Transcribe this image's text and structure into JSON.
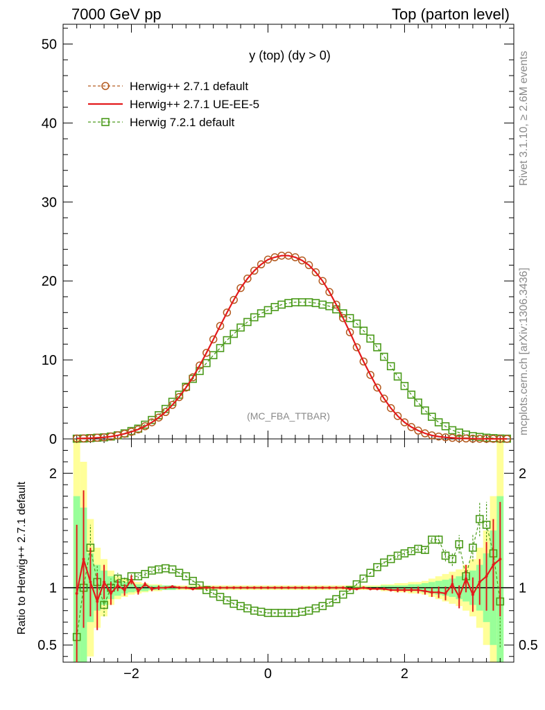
{
  "header": {
    "left": "7000 GeV pp",
    "right": "Top (parton level)"
  },
  "side_labels": {
    "rivet": "Rivet 3.1.10, ≥ 2.6M events",
    "site": "mcplots.cern.ch [arXiv:1306.3436]"
  },
  "colors": {
    "herwig_default": "#b35a1f",
    "herwig_ue": "#e31a1c",
    "herwig7": "#4a9a1a",
    "band_yellow": "#ffff99",
    "band_green": "#99ff99"
  },
  "chart_data": [
    {
      "type": "line",
      "title": "y (top) (dy > 0)",
      "watermark": "(MC_FBA_TTBAR)",
      "xlim": [
        -3.0,
        3.6
      ],
      "ylim": [
        0,
        52.5
      ],
      "yticks": [
        0,
        10,
        20,
        30,
        40,
        50
      ],
      "legend_position": "top-left",
      "series": [
        {
          "name": "Herwig++ 2.7.1 default",
          "style": "dashed-circle",
          "color": "#b35a1f",
          "x": [
            -2.8,
            -2.7,
            -2.6,
            -2.5,
            -2.4,
            -2.3,
            -2.2,
            -2.1,
            -2.0,
            -1.9,
            -1.8,
            -1.7,
            -1.6,
            -1.5,
            -1.4,
            -1.3,
            -1.2,
            -1.1,
            -1.0,
            -0.9,
            -0.8,
            -0.7,
            -0.6,
            -0.5,
            -0.4,
            -0.3,
            -0.2,
            -0.1,
            0.0,
            0.1,
            0.2,
            0.3,
            0.4,
            0.5,
            0.6,
            0.7,
            0.8,
            0.9,
            1.0,
            1.1,
            1.2,
            1.3,
            1.4,
            1.5,
            1.6,
            1.7,
            1.8,
            1.9,
            2.0,
            2.1,
            2.2,
            2.3,
            2.4,
            2.5,
            2.6,
            2.7,
            2.8,
            2.9,
            3.0,
            3.1,
            3.2,
            3.3,
            3.4,
            3.5
          ],
          "y": [
            0.05,
            0.07,
            0.1,
            0.15,
            0.2,
            0.3,
            0.45,
            0.65,
            0.9,
            1.2,
            1.6,
            2.1,
            2.7,
            3.4,
            4.3,
            5.3,
            6.5,
            7.8,
            9.3,
            10.9,
            12.6,
            14.3,
            16.0,
            17.6,
            19.1,
            20.3,
            21.3,
            22.1,
            22.7,
            23.0,
            23.2,
            23.2,
            23.0,
            22.6,
            22.0,
            21.1,
            20.0,
            18.6,
            17.0,
            15.3,
            13.5,
            11.6,
            9.8,
            8.1,
            6.5,
            5.1,
            3.9,
            2.9,
            2.1,
            1.5,
            1.05,
            0.7,
            0.45,
            0.3,
            0.2,
            0.13,
            0.08,
            0.05,
            0.03,
            0.02,
            0.01,
            0.01,
            0.005,
            0.003
          ]
        },
        {
          "name": "Herwig++ 2.7.1 UE-EE-5",
          "style": "solid",
          "color": "#e31a1c",
          "x": [
            -2.8,
            -2.7,
            -2.6,
            -2.5,
            -2.4,
            -2.3,
            -2.2,
            -2.1,
            -2.0,
            -1.9,
            -1.8,
            -1.7,
            -1.6,
            -1.5,
            -1.4,
            -1.3,
            -1.2,
            -1.1,
            -1.0,
            -0.9,
            -0.8,
            -0.7,
            -0.6,
            -0.5,
            -0.4,
            -0.3,
            -0.2,
            -0.1,
            0.0,
            0.1,
            0.2,
            0.3,
            0.4,
            0.5,
            0.6,
            0.7,
            0.8,
            0.9,
            1.0,
            1.1,
            1.2,
            1.3,
            1.4,
            1.5,
            1.6,
            1.7,
            1.8,
            1.9,
            2.0,
            2.1,
            2.2,
            2.3,
            2.4,
            2.5,
            2.6,
            2.7,
            2.8,
            2.9,
            3.0,
            3.1,
            3.2,
            3.3,
            3.4,
            3.5
          ],
          "y": [
            0.05,
            0.07,
            0.1,
            0.15,
            0.2,
            0.3,
            0.45,
            0.65,
            0.9,
            1.2,
            1.6,
            2.1,
            2.7,
            3.4,
            4.3,
            5.3,
            6.5,
            7.8,
            9.3,
            10.9,
            12.6,
            14.3,
            16.0,
            17.6,
            19.1,
            20.3,
            21.3,
            22.1,
            22.7,
            23.0,
            23.2,
            23.2,
            23.0,
            22.6,
            22.0,
            21.1,
            20.0,
            18.6,
            17.0,
            15.3,
            13.5,
            11.6,
            9.8,
            8.1,
            6.5,
            5.1,
            3.9,
            2.9,
            2.1,
            1.5,
            1.05,
            0.7,
            0.45,
            0.3,
            0.2,
            0.13,
            0.08,
            0.05,
            0.03,
            0.02,
            0.01,
            0.01,
            0.005,
            0.003
          ]
        },
        {
          "name": "Herwig 7.2.1 default",
          "style": "dashed-square",
          "color": "#4a9a1a",
          "x": [
            -2.8,
            -2.7,
            -2.6,
            -2.5,
            -2.4,
            -2.3,
            -2.2,
            -2.1,
            -2.0,
            -1.9,
            -1.8,
            -1.7,
            -1.6,
            -1.5,
            -1.4,
            -1.3,
            -1.2,
            -1.1,
            -1.0,
            -0.9,
            -0.8,
            -0.7,
            -0.6,
            -0.5,
            -0.4,
            -0.3,
            -0.2,
            -0.1,
            0.0,
            0.1,
            0.2,
            0.3,
            0.4,
            0.5,
            0.6,
            0.7,
            0.8,
            0.9,
            1.0,
            1.1,
            1.2,
            1.3,
            1.4,
            1.5,
            1.6,
            1.7,
            1.8,
            1.9,
            2.0,
            2.1,
            2.2,
            2.3,
            2.4,
            2.5,
            2.6,
            2.7,
            2.8,
            2.9,
            3.0,
            3.1,
            3.2,
            3.3,
            3.4,
            3.5
          ],
          "y": [
            0.03,
            0.05,
            0.1,
            0.15,
            0.2,
            0.3,
            0.45,
            0.7,
            1.0,
            1.3,
            1.8,
            2.4,
            3.0,
            3.8,
            4.7,
            5.6,
            6.6,
            7.6,
            8.6,
            9.6,
            10.6,
            11.5,
            12.5,
            13.3,
            14.1,
            14.8,
            15.4,
            15.9,
            16.3,
            16.7,
            17.0,
            17.2,
            17.3,
            17.3,
            17.3,
            17.2,
            17.0,
            16.8,
            16.4,
            15.9,
            15.3,
            14.6,
            13.7,
            12.7,
            11.6,
            10.4,
            9.2,
            7.9,
            6.7,
            5.6,
            4.6,
            3.6,
            2.8,
            2.1,
            1.6,
            1.1,
            0.8,
            0.55,
            0.35,
            0.25,
            0.15,
            0.1,
            0.05,
            0.03
          ]
        }
      ]
    },
    {
      "type": "line",
      "ylabel": "Ratio to Herwig++ 2.7.1 default",
      "xlim": [
        -3.0,
        3.6
      ],
      "ylim": [
        0.35,
        2.3
      ],
      "yticks": [
        0.5,
        1,
        2
      ],
      "xticks": [
        -2,
        0,
        2
      ],
      "series": [
        {
          "name": "Herwig++ 2.7.1 UE-EE-5",
          "x": [
            -2.8,
            -2.7,
            -2.6,
            -2.5,
            -2.4,
            -2.3,
            -2.2,
            -2.1,
            -2.0,
            -1.9,
            -1.8,
            -1.7,
            -1.6,
            -1.5,
            -1.4,
            -1.3,
            -1.2,
            -1.1,
            -1.0,
            -0.9,
            -0.8,
            -0.7,
            -0.6,
            -0.5,
            -0.4,
            -0.3,
            -0.2,
            -0.1,
            0.0,
            0.1,
            0.2,
            0.3,
            0.4,
            0.5,
            0.6,
            0.7,
            0.8,
            0.9,
            1.0,
            1.1,
            1.2,
            1.3,
            1.4,
            1.5,
            1.6,
            1.7,
            1.8,
            1.9,
            2.0,
            2.1,
            2.2,
            2.3,
            2.4,
            2.5,
            2.6,
            2.7,
            2.8,
            2.9,
            3.0,
            3.1,
            3.2,
            3.3,
            3.4
          ],
          "y": [
            0.95,
            1.25,
            1.05,
            0.88,
            1.05,
            0.95,
            1.02,
            0.98,
            1.07,
            0.97,
            1.03,
            0.99,
            1.0,
            1.0,
            1.01,
            1.0,
            1.0,
            0.99,
            1.0,
            1.0,
            1.0,
            1.0,
            1.0,
            1.0,
            1.0,
            1.0,
            1.0,
            1.0,
            1.0,
            1.0,
            1.0,
            1.0,
            1.0,
            1.0,
            1.0,
            1.0,
            1.0,
            1.0,
            1.0,
            1.0,
            0.99,
            0.99,
            1.0,
            0.99,
            0.99,
            0.99,
            0.98,
            0.98,
            0.98,
            0.98,
            0.98,
            0.97,
            0.96,
            0.96,
            0.95,
            1.03,
            0.92,
            1.08,
            0.94,
            1.05,
            1.1,
            1.2,
            1.25
          ],
          "err": [
            0.6,
            0.6,
            0.3,
            0.25,
            0.15,
            0.1,
            0.05,
            0.05,
            0.04,
            0.03,
            0.02,
            0.02,
            0.02,
            0.01,
            0.01,
            0.01,
            0.01,
            0.01,
            0.01,
            0.01,
            0.01,
            0.01,
            0.01,
            0.01,
            0.01,
            0.01,
            0.01,
            0.01,
            0.01,
            0.01,
            0.01,
            0.01,
            0.01,
            0.01,
            0.01,
            0.01,
            0.01,
            0.01,
            0.01,
            0.01,
            0.01,
            0.01,
            0.01,
            0.01,
            0.01,
            0.01,
            0.01,
            0.02,
            0.02,
            0.02,
            0.03,
            0.03,
            0.04,
            0.05,
            0.06,
            0.08,
            0.1,
            0.12,
            0.15,
            0.2,
            0.3,
            0.4,
            0.5
          ]
        },
        {
          "name": "Herwig 7.2.1 default",
          "x": [
            -2.8,
            -2.7,
            -2.6,
            -2.5,
            -2.4,
            -2.3,
            -2.2,
            -2.1,
            -2.0,
            -1.9,
            -1.8,
            -1.7,
            -1.6,
            -1.5,
            -1.4,
            -1.3,
            -1.2,
            -1.1,
            -1.0,
            -0.9,
            -0.8,
            -0.7,
            -0.6,
            -0.5,
            -0.4,
            -0.3,
            -0.2,
            -0.1,
            0.0,
            0.1,
            0.2,
            0.3,
            0.4,
            0.5,
            0.6,
            0.7,
            0.8,
            0.9,
            1.0,
            1.1,
            1.2,
            1.3,
            1.4,
            1.5,
            1.6,
            1.7,
            1.8,
            1.9,
            2.0,
            2.1,
            2.2,
            2.3,
            2.4,
            2.5,
            2.6,
            2.7,
            2.8,
            2.9,
            3.0,
            3.1,
            3.2,
            3.3,
            3.4
          ],
          "y": [
            0.57,
            1.0,
            1.35,
            1.05,
            0.85,
            1.0,
            1.08,
            1.05,
            1.1,
            1.1,
            1.12,
            1.15,
            1.16,
            1.17,
            1.16,
            1.13,
            1.1,
            1.06,
            1.02,
            0.98,
            0.95,
            0.92,
            0.89,
            0.86,
            0.84,
            0.82,
            0.8,
            0.79,
            0.78,
            0.78,
            0.78,
            0.78,
            0.78,
            0.79,
            0.8,
            0.82,
            0.84,
            0.87,
            0.9,
            0.94,
            0.98,
            1.03,
            1.08,
            1.13,
            1.18,
            1.22,
            1.25,
            1.28,
            1.3,
            1.32,
            1.34,
            1.33,
            1.42,
            1.42,
            1.28,
            1.25,
            1.38,
            1.1,
            1.35,
            1.6,
            1.55,
            1.3,
            0.88
          ],
          "err": [
            0.3,
            0.35,
            0.2,
            0.15,
            0.1,
            0.08,
            0.05,
            0.04,
            0.03,
            0.02,
            0.02,
            0.02,
            0.02,
            0.01,
            0.01,
            0.01,
            0.01,
            0.01,
            0.01,
            0.01,
            0.01,
            0.01,
            0.01,
            0.01,
            0.01,
            0.01,
            0.01,
            0.01,
            0.01,
            0.01,
            0.01,
            0.01,
            0.01,
            0.01,
            0.01,
            0.01,
            0.01,
            0.01,
            0.01,
            0.01,
            0.01,
            0.01,
            0.01,
            0.01,
            0.01,
            0.01,
            0.01,
            0.02,
            0.02,
            0.02,
            0.02,
            0.03,
            0.03,
            0.04,
            0.05,
            0.06,
            0.08,
            0.1,
            0.12,
            0.15,
            0.2,
            0.3,
            0.4
          ]
        }
      ],
      "band": {
        "x": [
          -2.8,
          -2.7,
          -2.6,
          -2.5,
          -2.4,
          -2.3,
          -2.2,
          -2.1,
          -2.0,
          -1.9,
          -1.8,
          -1.7,
          -1.6,
          -1.5,
          -1.4,
          -1.3,
          -1.2,
          -1.1,
          -1.0,
          -0.9,
          -0.8,
          -0.7,
          -0.6,
          -0.5,
          -0.4,
          -0.3,
          -0.2,
          -0.1,
          0.0,
          0.1,
          0.2,
          0.3,
          0.4,
          0.5,
          0.6,
          0.7,
          0.8,
          0.9,
          1.0,
          1.1,
          1.2,
          1.3,
          1.4,
          1.5,
          1.6,
          1.7,
          1.8,
          1.9,
          2.0,
          2.1,
          2.2,
          2.3,
          2.4,
          2.5,
          2.6,
          2.7,
          2.8,
          2.9,
          3.0,
          3.1,
          3.2,
          3.3,
          3.4
        ],
        "green": [
          0.8,
          0.7,
          0.3,
          0.2,
          0.15,
          0.1,
          0.07,
          0.05,
          0.04,
          0.03,
          0.03,
          0.02,
          0.02,
          0.02,
          0.02,
          0.01,
          0.01,
          0.01,
          0.01,
          0.01,
          0.01,
          0.01,
          0.01,
          0.01,
          0.01,
          0.01,
          0.01,
          0.01,
          0.01,
          0.01,
          0.01,
          0.01,
          0.01,
          0.01,
          0.01,
          0.01,
          0.01,
          0.01,
          0.01,
          0.01,
          0.01,
          0.01,
          0.01,
          0.01,
          0.01,
          0.02,
          0.02,
          0.02,
          0.02,
          0.03,
          0.03,
          0.04,
          0.05,
          0.06,
          0.07,
          0.08,
          0.1,
          0.12,
          0.15,
          0.2,
          0.3,
          0.5,
          0.8
        ],
        "yellow": [
          1.3,
          1.1,
          0.6,
          0.35,
          0.25,
          0.15,
          0.1,
          0.08,
          0.06,
          0.05,
          0.04,
          0.03,
          0.03,
          0.02,
          0.02,
          0.02,
          0.02,
          0.02,
          0.02,
          0.02,
          0.02,
          0.02,
          0.02,
          0.02,
          0.02,
          0.02,
          0.02,
          0.02,
          0.02,
          0.02,
          0.02,
          0.02,
          0.02,
          0.02,
          0.02,
          0.02,
          0.02,
          0.02,
          0.02,
          0.02,
          0.02,
          0.02,
          0.02,
          0.02,
          0.02,
          0.03,
          0.03,
          0.04,
          0.04,
          0.05,
          0.05,
          0.06,
          0.08,
          0.1,
          0.12,
          0.14,
          0.16,
          0.2,
          0.25,
          0.35,
          0.5,
          0.8,
          1.3
        ]
      }
    }
  ]
}
